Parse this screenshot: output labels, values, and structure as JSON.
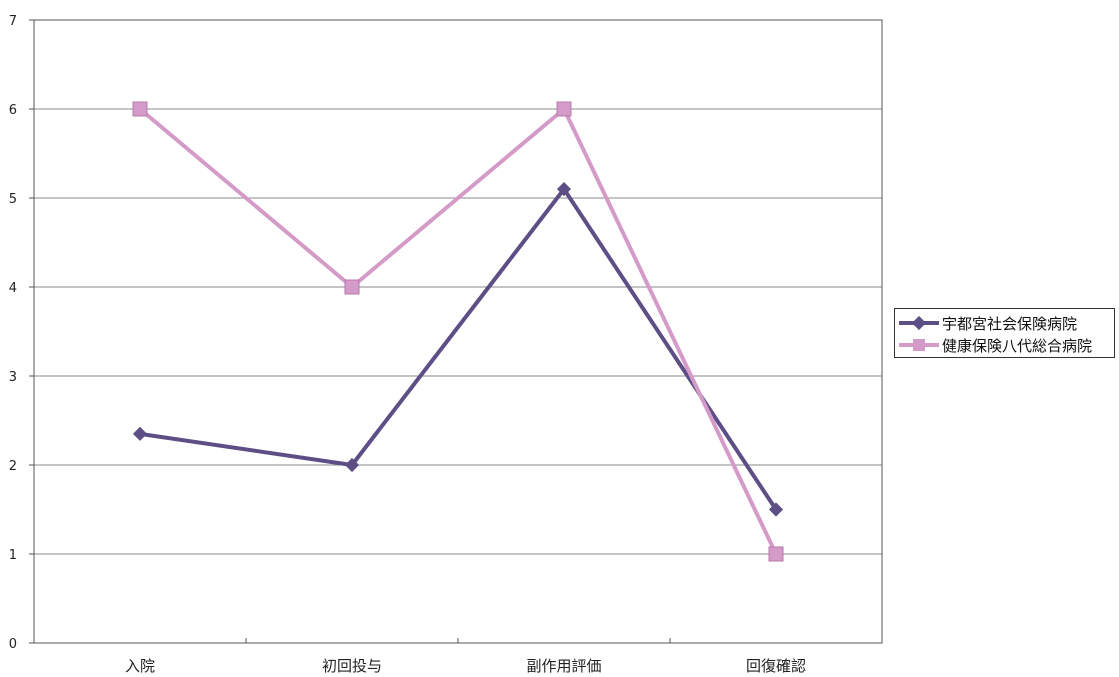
{
  "chart_data": {
    "type": "line",
    "categories": [
      "入院",
      "初回投与",
      "副作用評価",
      "回復確認"
    ],
    "ylim": [
      0,
      7
    ],
    "yticks": [
      0,
      1,
      2,
      3,
      4,
      5,
      6,
      7
    ],
    "grid": true,
    "legend_position": "right",
    "series": [
      {
        "name": "宇都宮社会保険病院",
        "values": [
          2.35,
          2.0,
          5.1,
          1.5
        ],
        "color": "#5e4e86",
        "marker": "diamond"
      },
      {
        "name": "健康保険八代総合病院",
        "values": [
          6.0,
          4.0,
          6.0,
          1.0
        ],
        "color": "#d49ac8",
        "marker": "square"
      }
    ]
  }
}
